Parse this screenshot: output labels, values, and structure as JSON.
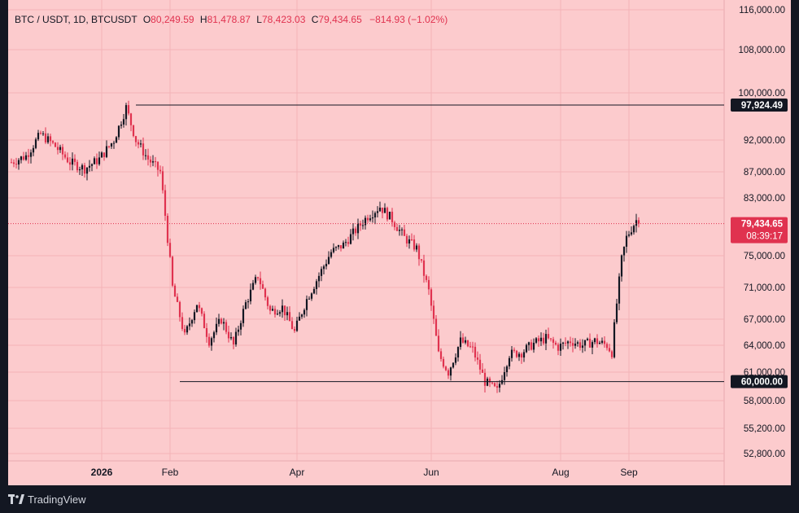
{
  "header": {
    "symbol": "BTC / USDT, 1D, BTCUSDT",
    "open_label": "O",
    "open": "80,249.59",
    "high_label": "H",
    "high": "81,478.87",
    "low_label": "L",
    "low": "78,423.03",
    "close_label": "C",
    "close": "79,434.65",
    "change": "−814.93 (−1.02%)"
  },
  "footer": {
    "brand": "TradingView",
    "logo_icon": "tradingview-logo-icon"
  },
  "colors": {
    "background": "#fccbcd",
    "frame": "#131722",
    "up": "#131722",
    "down": "#e0324f",
    "grid": "#f3b3b8",
    "last_price_badge": "#e0324f"
  },
  "chart_data": {
    "type": "candlestick",
    "title": "BTC / USDT, 1D, BTCUSDT",
    "y_ticks": [
      "116,000.00",
      "108,000.00",
      "100,000.00",
      "92,000.00",
      "87,000.00",
      "83,000.00",
      "75,000.00",
      "71,000.00",
      "67,000.00",
      "64,000.00",
      "61,000.00",
      "58,000.00",
      "55,200.00",
      "52,800.00"
    ],
    "x_ticks": [
      "2026",
      "Feb",
      "Apr",
      "Jun",
      "Aug",
      "Sep"
    ],
    "horizontal_lines": [
      {
        "value": 97924.49,
        "label": "97,924.49"
      },
      {
        "value": 60000.0,
        "label": "60,000.00"
      }
    ],
    "last_price": {
      "value": 79434.65,
      "label": "79,434.65",
      "countdown": "08:39:17"
    },
    "grid": true,
    "series": [
      {
        "points": [
          [
            0,
            88500
          ],
          [
            6,
            89500
          ],
          [
            12,
            93000
          ],
          [
            18,
            91000
          ],
          [
            24,
            88500
          ],
          [
            30,
            87500
          ],
          [
            36,
            89000
          ],
          [
            42,
            92000
          ],
          [
            47,
            97500
          ],
          [
            51,
            92000
          ],
          [
            56,
            89000
          ],
          [
            61,
            87000
          ],
          [
            66,
            71000
          ],
          [
            71,
            65000
          ],
          [
            76,
            69000
          ],
          [
            81,
            64500
          ],
          [
            86,
            67000
          ],
          [
            91,
            64000
          ],
          [
            96,
            69000
          ],
          [
            101,
            72500
          ],
          [
            106,
            68000
          ],
          [
            111,
            68500
          ],
          [
            116,
            65500
          ],
          [
            121,
            69500
          ],
          [
            126,
            72500
          ],
          [
            131,
            75500
          ],
          [
            136,
            76500
          ],
          [
            141,
            78500
          ],
          [
            146,
            80500
          ],
          [
            151,
            81800
          ],
          [
            156,
            80000
          ],
          [
            161,
            77500
          ],
          [
            166,
            76000
          ],
          [
            171,
            70500
          ],
          [
            175,
            63000
          ],
          [
            179,
            61000
          ],
          [
            184,
            64500
          ],
          [
            189,
            63500
          ],
          [
            194,
            60000
          ],
          [
            199,
            59000
          ],
          [
            204,
            63000
          ],
          [
            209,
            63200
          ],
          [
            214,
            64200
          ],
          [
            219,
            64800
          ],
          [
            224,
            63800
          ],
          [
            229,
            64500
          ],
          [
            234,
            64000
          ],
          [
            239,
            64500
          ],
          [
            244,
            64000
          ],
          [
            246,
            63200
          ],
          [
            248,
            69000
          ],
          [
            250,
            74500
          ],
          [
            252,
            77500
          ],
          [
            254,
            78800
          ],
          [
            256,
            79900
          ],
          [
            257,
            79434.65
          ]
        ]
      }
    ]
  }
}
